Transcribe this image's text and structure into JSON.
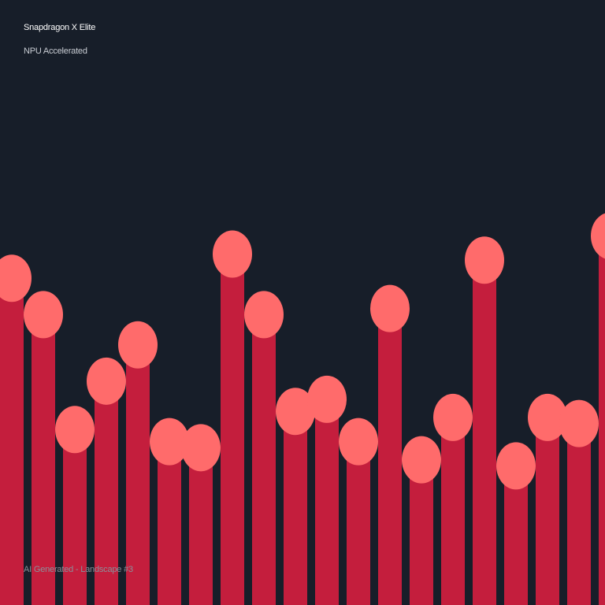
{
  "header": {
    "title": "Snapdragon X Elite",
    "subtitle": "NPU Accelerated"
  },
  "footer": {
    "caption": "AI Generated - Landscape #3"
  },
  "colors": {
    "background": "#171e29",
    "bar": "#c41e3d",
    "cap": "#ff6b6b"
  },
  "artwork": {
    "levels": [
      0.54,
      0.48,
      0.29,
      0.37,
      0.43,
      0.27,
      0.26,
      0.58,
      0.48,
      0.32,
      0.34,
      0.27,
      0.49,
      0.24,
      0.31,
      0.57,
      0.23,
      0.31,
      0.3,
      0.61
    ]
  }
}
